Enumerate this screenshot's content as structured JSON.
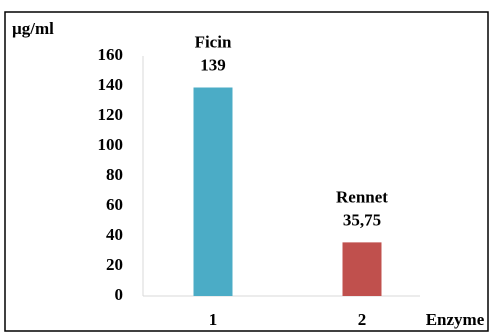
{
  "chart_data": {
    "type": "bar",
    "y_label": "µg/ml",
    "x_label": "Enzyme",
    "categories": [
      "1",
      "2"
    ],
    "bar_labels": [
      "Ficin",
      "Rennet"
    ],
    "values": [
      139,
      35.75
    ],
    "value_labels": [
      "139",
      "35,75"
    ],
    "colors": [
      "#4bacc6",
      "#c0504d"
    ],
    "ylim": [
      0,
      160
    ],
    "yticks": [
      0,
      20,
      40,
      60,
      80,
      100,
      120,
      140,
      160
    ],
    "grid": false
  }
}
